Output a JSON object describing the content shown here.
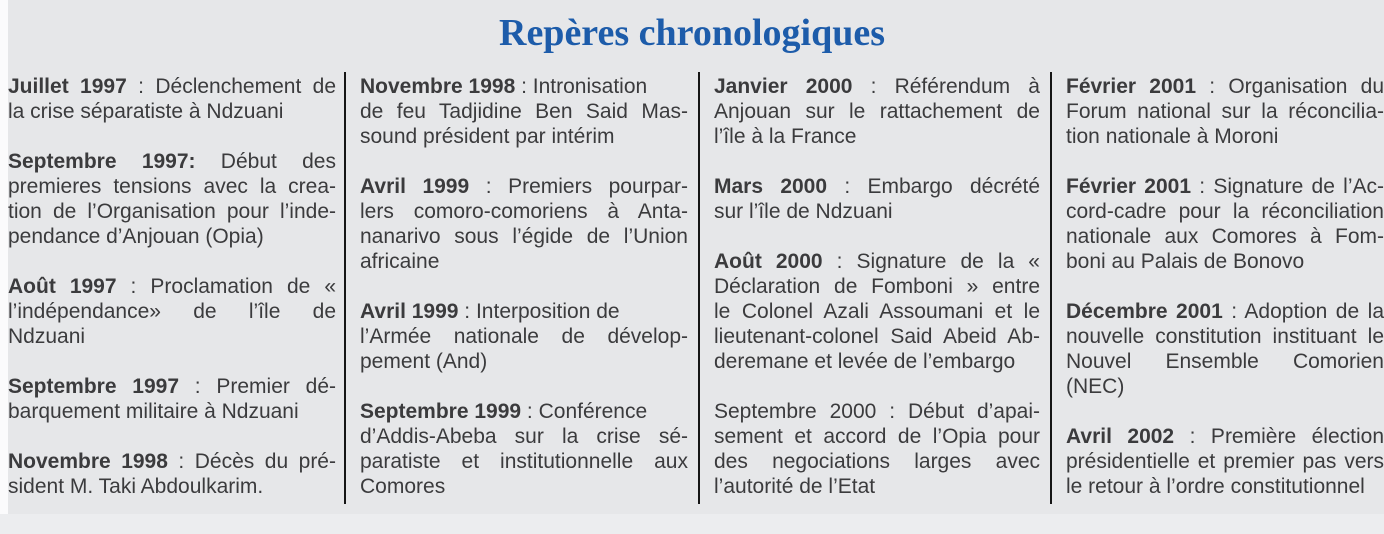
{
  "title": "Repères chronologiques",
  "colors": {
    "title_blue": "#1d5caa",
    "body_text": "#3b3b3d",
    "page_background": "#e6e7e9",
    "divider": "#161616",
    "left_margin": "#fbfbfc",
    "bottom_margin": "#ecedef"
  },
  "columns": [
    {
      "entries": [
        {
          "lead": "Juillet 1997",
          "lines": [
            " : Déclenchement de",
            "la crise séparatiste à Ndzuani"
          ]
        },
        {
          "lead": "Septembre 1997:",
          "lines": [
            " Début des",
            "premieres tensions avec la crea-",
            "tion de l’Organisation pour l’inde-",
            "pendance d’Anjouan (Opia)"
          ]
        },
        {
          "lead": "Août 1997",
          "lines": [
            " : Proclamation de «",
            "l’indépendance» de l’île de",
            "Ndzuani"
          ]
        },
        {
          "lead": "Septembre 1997",
          "lines": [
            " : Premier dé-",
            "barquement militaire à Ndzuani"
          ]
        },
        {
          "lead": "Novembre 1998",
          "lines": [
            " : Décès du pré-",
            "sident M. Taki Abdoulkarim."
          ]
        }
      ]
    },
    {
      "entries": [
        {
          "lead": "Novembre 1998",
          "lines": [
            " : Intronisation",
            "de feu Tadjidine Ben Said Mas-",
            "sound président par intérim"
          ],
          "unjustified": [
            0
          ]
        },
        {
          "lead": "Avril 1999",
          "lines": [
            " : Premiers pourpar-",
            "lers comoro-comoriens à Anta-",
            "nanarivo sous l’égide de l’Union",
            "africaine"
          ]
        },
        {
          "lead": "Avril 1999",
          "lines": [
            " : Interposition de",
            "l’Armée nationale de dévelop-",
            "pement (And)"
          ],
          "unjustified": [
            0
          ]
        },
        {
          "lead": "Septembre 1999",
          "lines": [
            " : Conférence",
            "d’Addis-Abeba sur la crise sé-",
            "paratiste et institutionnelle aux",
            "Comores"
          ],
          "unjustified": [
            0
          ]
        }
      ]
    },
    {
      "entries": [
        {
          "lead": "Janvier 2000",
          "lines": [
            " : Référendum à",
            "Anjouan sur le rattachement de",
            "l’île à la France"
          ]
        },
        {
          "lead": "Mars 2000",
          "lines": [
            " : Embargo décrété",
            "sur l’île de Ndzuani"
          ]
        },
        {
          "lead": "Août 2000",
          "lines": [
            " : Signature de la «",
            "Déclaration de Fomboni » entre",
            "le Colonel Azali Assoumani et le",
            "lieutenant-colonel Said Abeid Ab-",
            "deremane et levée de l’embargo"
          ]
        },
        {
          "lead": "",
          "lines": [
            "Septembre 2000 : Début d’apai-",
            "sement et accord de l’Opia pour",
            "des negociations larges avec",
            "l’autorité de l’Etat"
          ]
        }
      ]
    },
    {
      "entries": [
        {
          "lead": "Février 2001",
          "lines": [
            " : Organisation du",
            "Forum national sur la réconcilia-",
            "tion nationale à Moroni"
          ]
        },
        {
          "lead": "Février 2001",
          "lines": [
            " : Signature de l’Ac-",
            "cord-cadre pour la réconciliation",
            "nationale aux Comores à Fom-",
            "boni au Palais de Bonovo"
          ]
        },
        {
          "lead": "Décembre 2001",
          "lines": [
            " : Adoption de la",
            "nouvelle constitution instituant le",
            "Nouvel Ensemble Comorien",
            "(NEC)"
          ]
        },
        {
          "lead": "Avril 2002",
          "lines": [
            " : Première élection",
            "présidentielle et premier pas vers",
            "le retour à l’ordre constitutionnel"
          ]
        }
      ]
    }
  ]
}
